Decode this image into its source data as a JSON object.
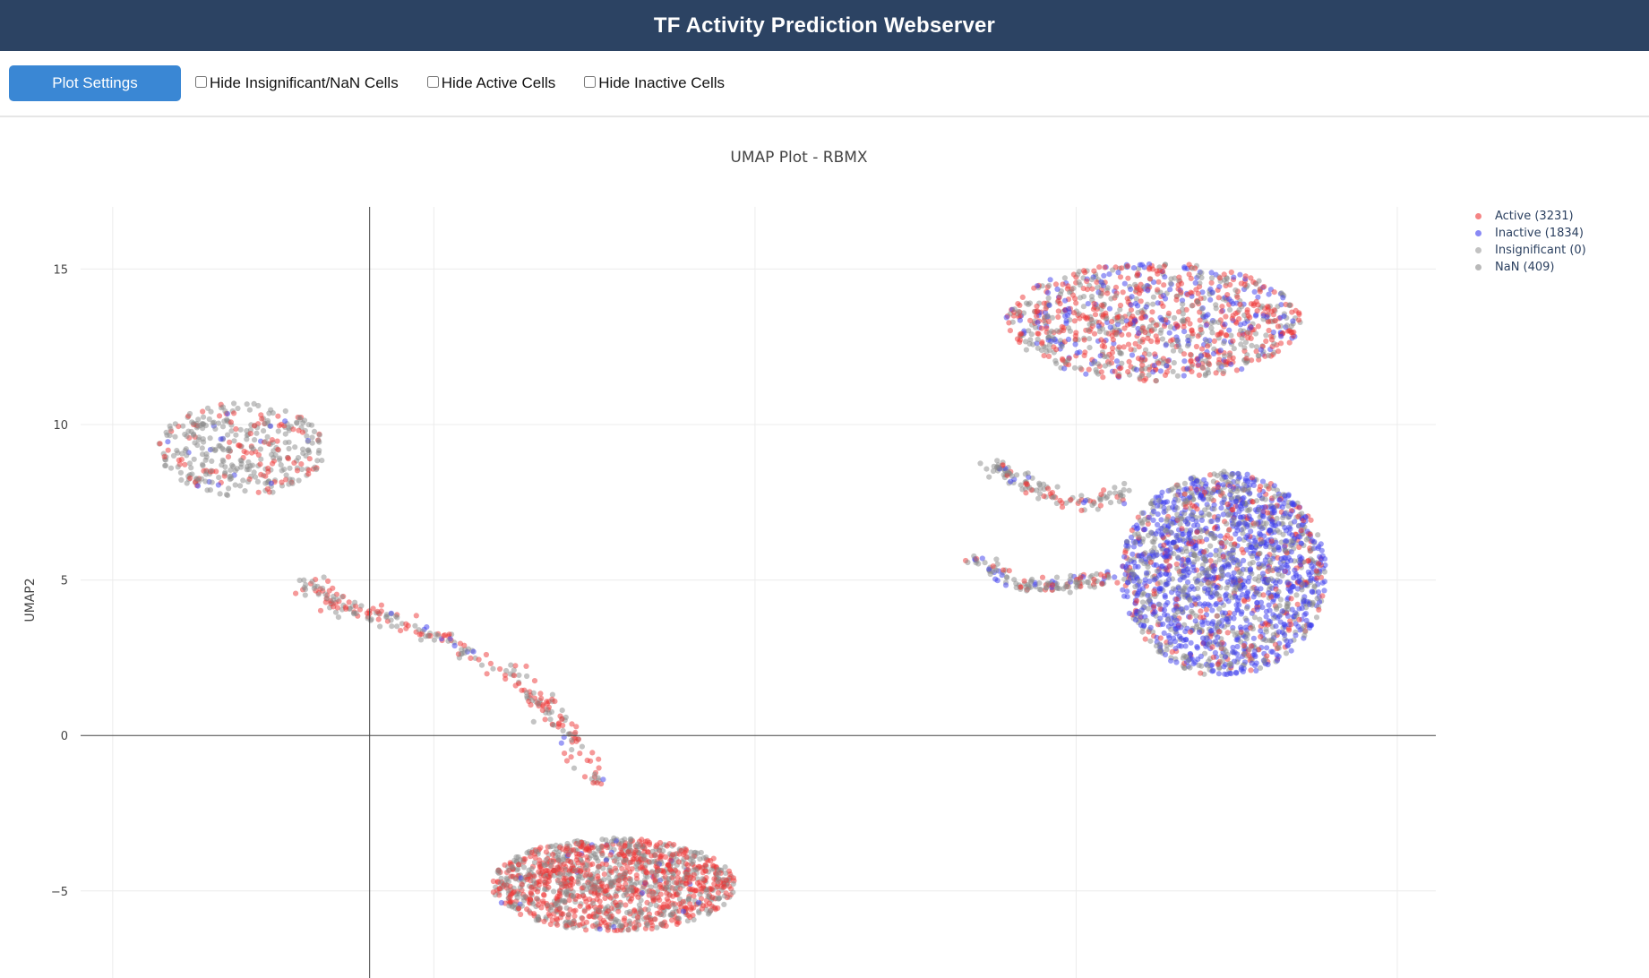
{
  "header": {
    "title": "TF Activity Prediction Webserver"
  },
  "toolbar": {
    "settings_label": "Plot Settings",
    "hide_insignificant_label": "Hide Insignificant/NaN Cells",
    "hide_active_label": "Hide Active Cells",
    "hide_inactive_label": "Hide Inactive Cells"
  },
  "colors": {
    "header_bg": "#2c4363",
    "button_bg": "#3a87d4",
    "active": "#ee3333",
    "inactive": "#3b3bee",
    "insignificant": "#999999",
    "nan": "#8a8a8a"
  },
  "chart_data": {
    "type": "scatter",
    "title": "UMAP Plot - RBMX",
    "xlabel": "",
    "ylabel": "UMAP2",
    "xlim": [
      -4.5,
      16.6
    ],
    "ylim": [
      -7.8,
      17.0
    ],
    "yticks": [
      15,
      10,
      5,
      0,
      -5
    ],
    "ytick_labels": [
      "15",
      "10",
      "5",
      "0",
      "−5"
    ],
    "xgrid": [
      -4,
      1,
      6,
      11,
      16
    ],
    "grid": true,
    "legend_position": "top-right",
    "series": [
      {
        "name": "Active",
        "label": "Active (3231)",
        "count": 3231,
        "color": "#ee3333"
      },
      {
        "name": "Inactive",
        "label": "Inactive (1834)",
        "count": 1834,
        "color": "#3b3bee"
      },
      {
        "name": "Insignificant",
        "label": "Insignificant (0)",
        "count": 0,
        "color": "#999999"
      },
      {
        "name": "NaN",
        "label": "NaN (409)",
        "count": 409,
        "color": "#8a8a8a"
      }
    ],
    "clusters": [
      {
        "name": "upper-left cluster",
        "cx": -2.0,
        "cy": 9.2,
        "rx": 1.3,
        "ry": 1.5,
        "n": 380,
        "mix": [
          0.25,
          0.03,
          0.72
        ]
      },
      {
        "name": "central trail",
        "polyline": [
          [
            -1.0,
            5.0
          ],
          [
            -0.5,
            4.2
          ],
          [
            0.3,
            3.8
          ],
          [
            1.2,
            3.0
          ],
          [
            2.2,
            2.0
          ],
          [
            2.7,
            1.0
          ],
          [
            3.1,
            0.0
          ],
          [
            3.6,
            -1.5
          ]
        ],
        "n": 260,
        "mix": [
          0.45,
          0.04,
          0.51
        ]
      },
      {
        "name": "lower-center cluster",
        "cx": 3.8,
        "cy": -4.8,
        "rx": 1.9,
        "ry": 1.5,
        "n": 1350,
        "mix": [
          0.55,
          0.02,
          0.43
        ]
      },
      {
        "name": "upper-right ring",
        "cx": 12.2,
        "cy": 13.3,
        "rx": 2.3,
        "ry": 1.9,
        "n": 1050,
        "mix": [
          0.42,
          0.22,
          0.36
        ]
      },
      {
        "name": "right arm upper",
        "polyline": [
          [
            9.7,
            8.7
          ],
          [
            10.3,
            8.0
          ],
          [
            11.0,
            7.4
          ],
          [
            11.8,
            7.8
          ]
        ],
        "n": 120,
        "mix": [
          0.3,
          0.1,
          0.6
        ]
      },
      {
        "name": "right arm lower",
        "polyline": [
          [
            9.4,
            5.8
          ],
          [
            10.1,
            4.8
          ],
          [
            11.0,
            4.9
          ],
          [
            11.8,
            5.2
          ]
        ],
        "n": 140,
        "mix": [
          0.2,
          0.18,
          0.62
        ]
      },
      {
        "name": "right blob",
        "cx": 13.3,
        "cy": 5.2,
        "rx": 1.6,
        "ry": 3.3,
        "n": 1900,
        "mix": [
          0.15,
          0.52,
          0.33
        ]
      }
    ]
  }
}
